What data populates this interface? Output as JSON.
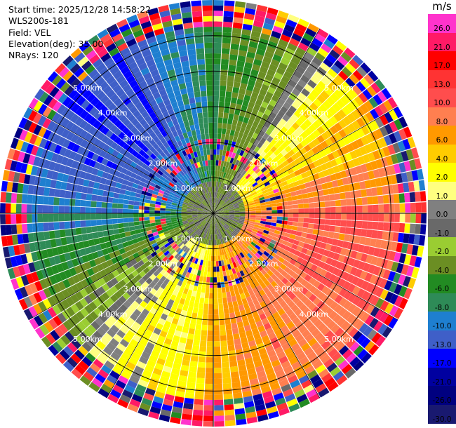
{
  "header": {
    "start_time": "Start time: 2025/12/28 14:58:22",
    "instrument": "WLS200s-181",
    "field": "Field: VEL",
    "elevation": "Elevation(deg): 35.00",
    "nrays": "NRays: 120"
  },
  "colorbar": {
    "unit": "m/s",
    "levels": [
      {
        "label": "26.0",
        "color": "#ff33cc"
      },
      {
        "label": "21.0",
        "color": "#ff1a66"
      },
      {
        "label": "17.0",
        "color": "#ff0000"
      },
      {
        "label": "13.0",
        "color": "#ff3333"
      },
      {
        "label": "10.0",
        "color": "#ff4d4d"
      },
      {
        "label": "8.0",
        "color": "#ff7f50"
      },
      {
        "label": "6.0",
        "color": "#ff9900"
      },
      {
        "label": "4.0",
        "color": "#ffcc00"
      },
      {
        "label": "2.0",
        "color": "#ffff00"
      },
      {
        "label": "1.0",
        "color": "#ffff80"
      },
      {
        "label": "0.0",
        "color": "#808080"
      },
      {
        "label": "-1.0",
        "color": "#696969"
      },
      {
        "label": "-2.0",
        "color": "#9acd32"
      },
      {
        "label": "-4.0",
        "color": "#6b8e23"
      },
      {
        "label": "-6.0",
        "color": "#228b22"
      },
      {
        "label": "-8.0",
        "color": "#2e8b57"
      },
      {
        "label": "-10.0",
        "color": "#1e7fd0"
      },
      {
        "label": "-13.0",
        "color": "#3f5fc8"
      },
      {
        "label": "-17.0",
        "color": "#0000ff"
      },
      {
        "label": "-21.0",
        "color": "#0000a0"
      },
      {
        "label": "-26.0",
        "color": "#000080"
      },
      {
        "label": "-30.0",
        "color": "#191970"
      }
    ]
  },
  "chart_data": {
    "type": "heatmap",
    "subtype": "radar-ppi",
    "field": "VEL",
    "elevation_deg": 35.0,
    "n_rays": 120,
    "range_rings_km": [
      1.0,
      2.0,
      3.0,
      4.0,
      5.0
    ],
    "ring_labels": [
      "1.00km",
      "2.00km",
      "3.00km",
      "4.00km",
      "5.00km"
    ],
    "max_range_km": 6.0,
    "grid": true,
    "velocity_pattern_by_azimuth": [
      {
        "azimuth_deg": 0,
        "velocity_ms": -5
      },
      {
        "azimuth_deg": 30,
        "velocity_ms": -2
      },
      {
        "azimuth_deg": 45,
        "velocity_ms": 3
      },
      {
        "azimuth_deg": 60,
        "velocity_ms": 4
      },
      {
        "azimuth_deg": 90,
        "velocity_ms": 9
      },
      {
        "azimuth_deg": 120,
        "velocity_ms": 10
      },
      {
        "azimuth_deg": 150,
        "velocity_ms": 8
      },
      {
        "azimuth_deg": 180,
        "velocity_ms": 5
      },
      {
        "azimuth_deg": 210,
        "velocity_ms": 2
      },
      {
        "azimuth_deg": 240,
        "velocity_ms": -3
      },
      {
        "azimuth_deg": 270,
        "velocity_ms": -8
      },
      {
        "azimuth_deg": 300,
        "velocity_ms": -11
      },
      {
        "azimuth_deg": 330,
        "velocity_ms": -12
      }
    ],
    "noisy_range_km": [
      1.3,
      2.1
    ],
    "noisy_edge_km": 5.3
  }
}
